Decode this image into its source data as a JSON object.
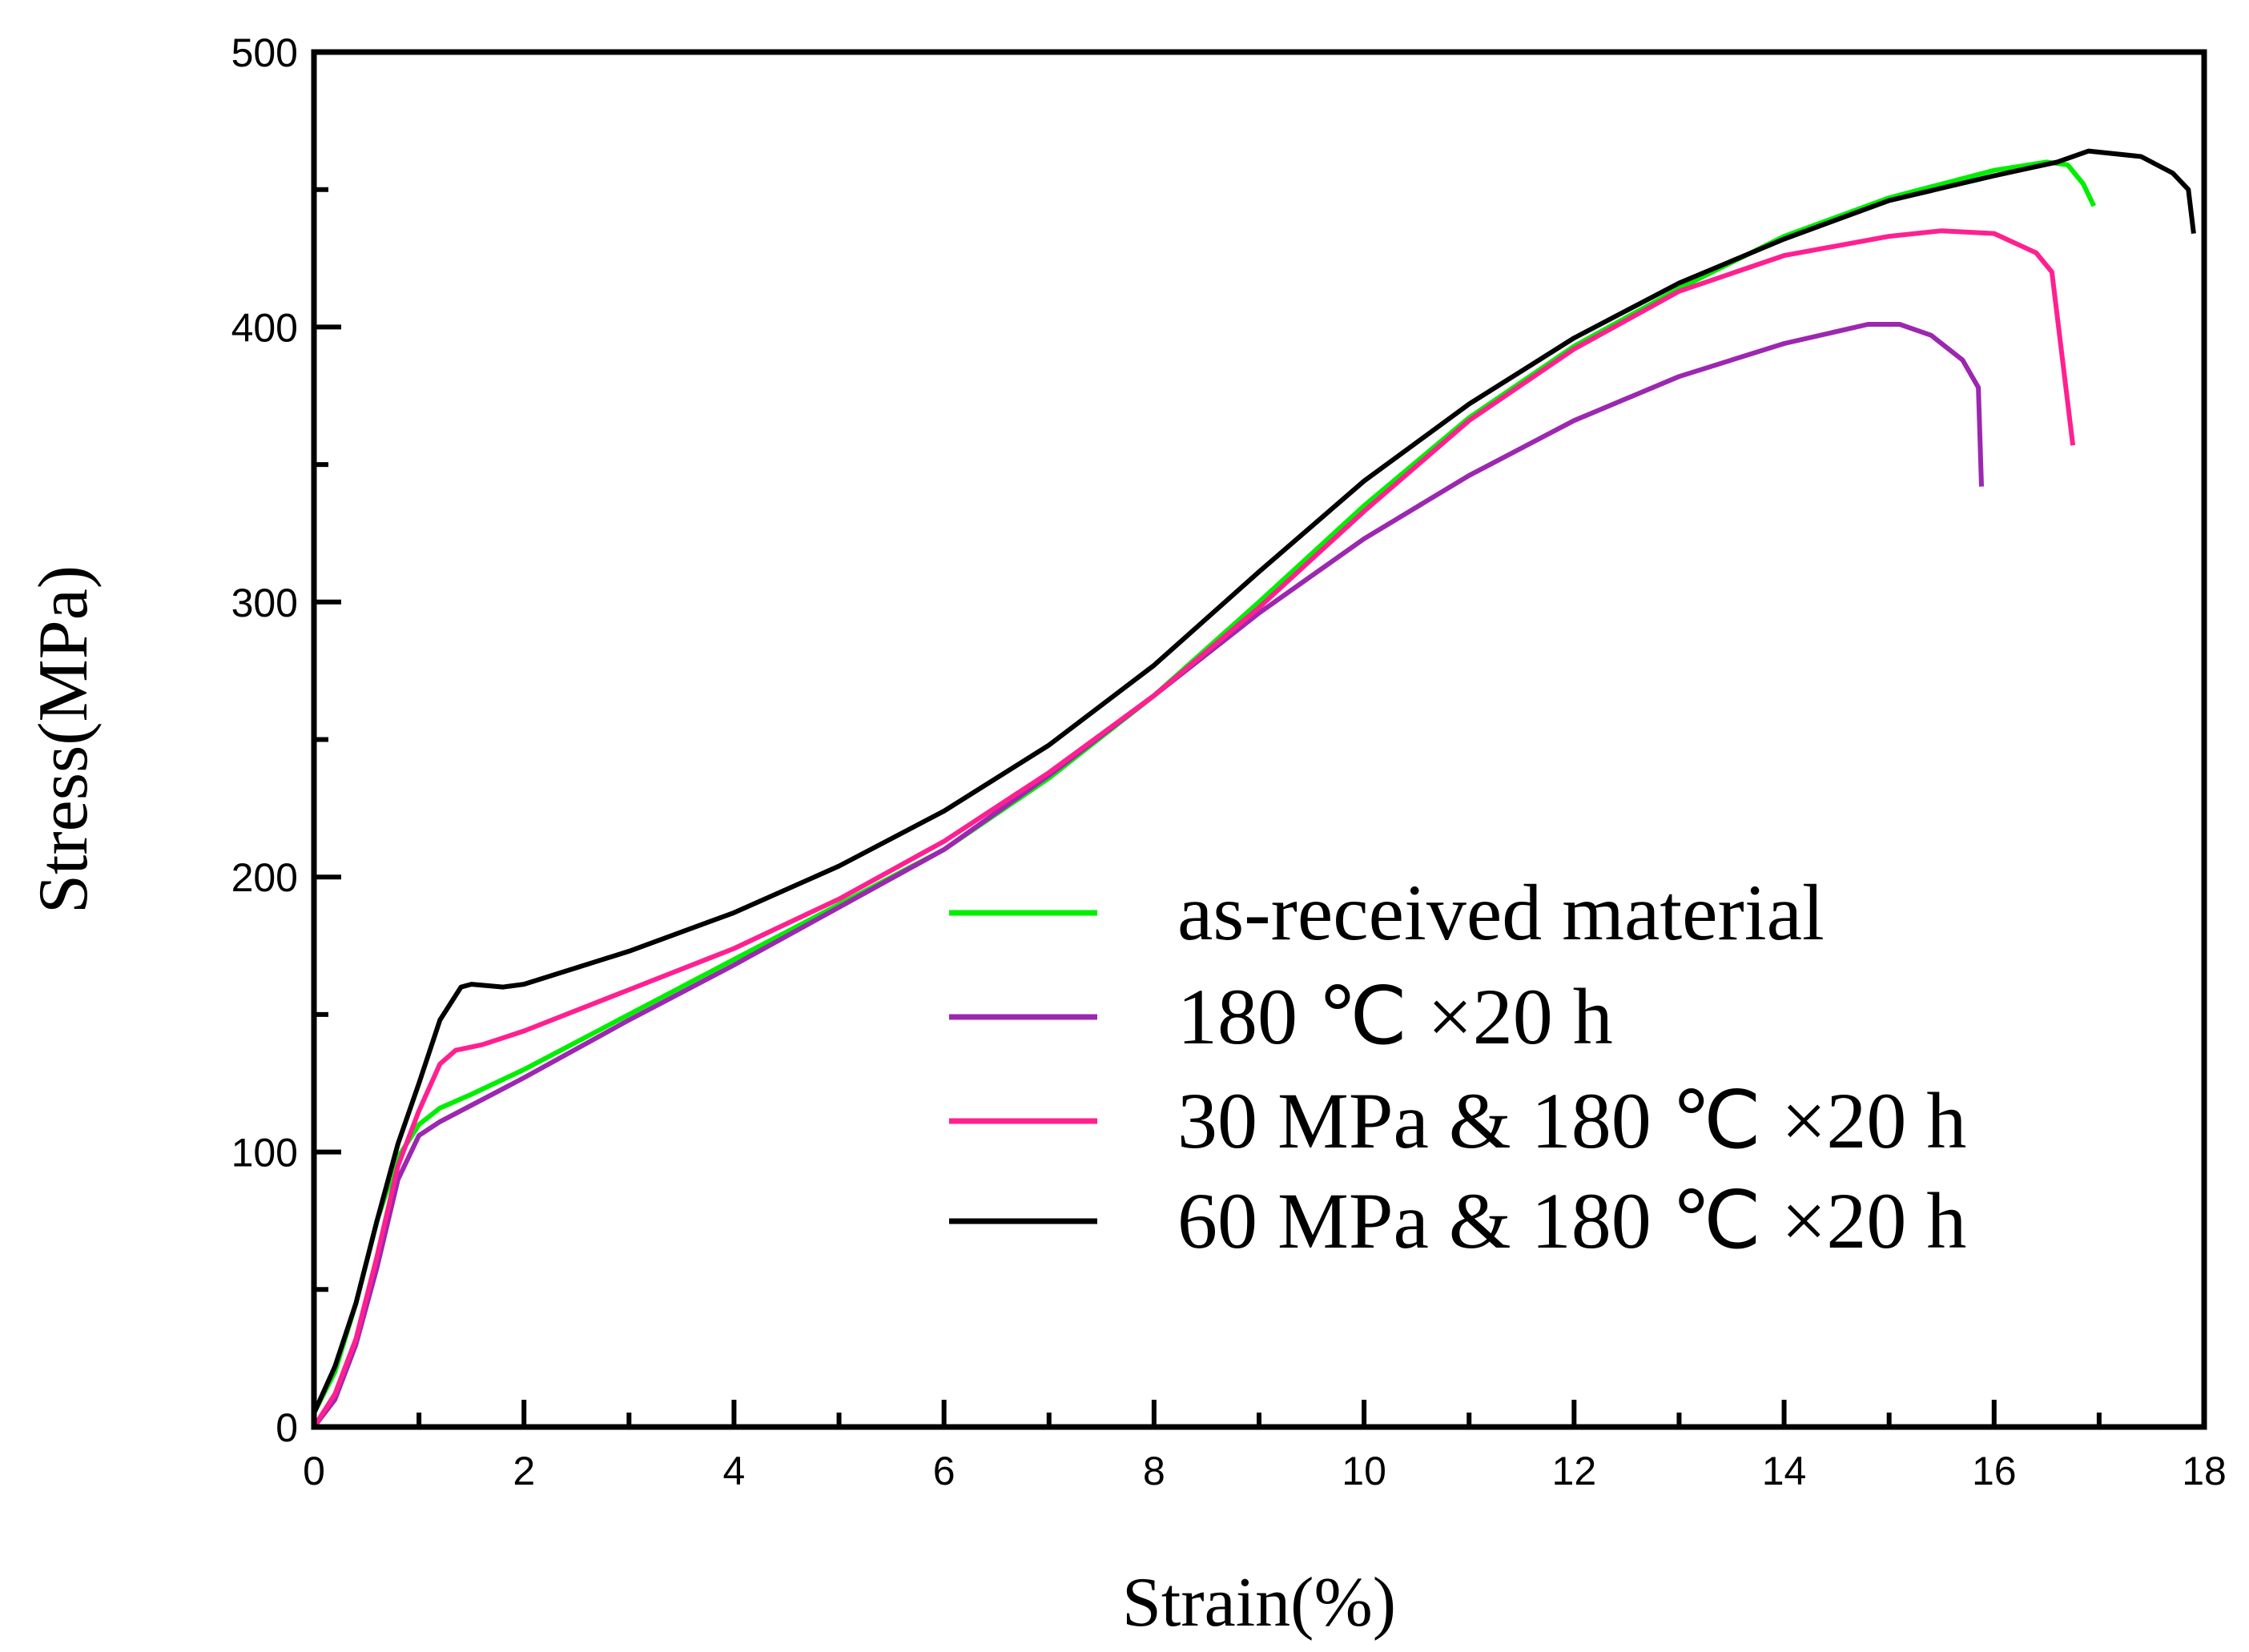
{
  "chart_data": {
    "type": "line",
    "title": "",
    "xlabel": "Strain(%)",
    "ylabel": "Stress(MPa)",
    "xlim": [
      0,
      18
    ],
    "ylim": [
      0,
      500
    ],
    "xticks": [
      0,
      2,
      4,
      6,
      8,
      10,
      12,
      14,
      16,
      18
    ],
    "yticks": [
      0,
      100,
      200,
      300,
      400,
      500
    ],
    "grid": false,
    "legend_position": "bottom-right",
    "series": [
      {
        "name": "as-received material",
        "color": "#00ee00",
        "points": [
          [
            0,
            5
          ],
          [
            0.2,
            20
          ],
          [
            0.4,
            45
          ],
          [
            0.6,
            75
          ],
          [
            0.8,
            98
          ],
          [
            1.0,
            110
          ],
          [
            1.2,
            116
          ],
          [
            1.5,
            121
          ],
          [
            2,
            130
          ],
          [
            3,
            150
          ],
          [
            4,
            170
          ],
          [
            5,
            190
          ],
          [
            6,
            210
          ],
          [
            7,
            236
          ],
          [
            8,
            266
          ],
          [
            9,
            300
          ],
          [
            10,
            335
          ],
          [
            11,
            367
          ],
          [
            12,
            393
          ],
          [
            13,
            414
          ],
          [
            14,
            433
          ],
          [
            15,
            447
          ],
          [
            16,
            457
          ],
          [
            16.5,
            460
          ],
          [
            16.7,
            459
          ],
          [
            16.85,
            452
          ],
          [
            16.95,
            444
          ]
        ]
      },
      {
        "name": "180 ℃ ×20 h",
        "color": "#9c27b0",
        "points": [
          [
            0,
            0
          ],
          [
            0.2,
            10
          ],
          [
            0.4,
            30
          ],
          [
            0.6,
            58
          ],
          [
            0.8,
            90
          ],
          [
            1.0,
            106
          ],
          [
            1.2,
            111
          ],
          [
            1.5,
            117
          ],
          [
            2,
            127
          ],
          [
            3,
            148
          ],
          [
            4,
            168
          ],
          [
            5,
            189
          ],
          [
            6,
            210
          ],
          [
            7,
            237
          ],
          [
            8,
            266
          ],
          [
            9,
            296
          ],
          [
            10,
            323
          ],
          [
            11,
            346
          ],
          [
            12,
            366
          ],
          [
            13,
            382
          ],
          [
            14,
            394
          ],
          [
            14.8,
            401
          ],
          [
            15.1,
            401
          ],
          [
            15.4,
            397
          ],
          [
            15.7,
            388
          ],
          [
            15.85,
            378
          ],
          [
            15.88,
            342
          ]
        ]
      },
      {
        "name": "30 MPa & 180 ℃ ×20 h",
        "color": "#ff2090",
        "points": [
          [
            0,
            0
          ],
          [
            0.2,
            12
          ],
          [
            0.4,
            32
          ],
          [
            0.6,
            62
          ],
          [
            0.8,
            95
          ],
          [
            1.0,
            115
          ],
          [
            1.2,
            132
          ],
          [
            1.35,
            137
          ],
          [
            1.6,
            139
          ],
          [
            2,
            144
          ],
          [
            3,
            159
          ],
          [
            4,
            174
          ],
          [
            5,
            192
          ],
          [
            6,
            213
          ],
          [
            7,
            238
          ],
          [
            8,
            266
          ],
          [
            9,
            298
          ],
          [
            10,
            333
          ],
          [
            11,
            366
          ],
          [
            12,
            392
          ],
          [
            13,
            413
          ],
          [
            14,
            426
          ],
          [
            15,
            433
          ],
          [
            15.5,
            435
          ],
          [
            16,
            434
          ],
          [
            16.4,
            427
          ],
          [
            16.55,
            420
          ],
          [
            16.75,
            357
          ]
        ]
      },
      {
        "name": "60 MPa & 180 ℃ ×20 h",
        "color": "#000000",
        "points": [
          [
            0,
            5
          ],
          [
            0.2,
            22
          ],
          [
            0.4,
            45
          ],
          [
            0.6,
            75
          ],
          [
            0.8,
            103
          ],
          [
            1.0,
            125
          ],
          [
            1.2,
            148
          ],
          [
            1.4,
            160
          ],
          [
            1.5,
            161
          ],
          [
            1.8,
            160
          ],
          [
            2,
            161
          ],
          [
            3,
            173
          ],
          [
            4,
            187
          ],
          [
            5,
            204
          ],
          [
            6,
            224
          ],
          [
            7,
            248
          ],
          [
            8,
            277
          ],
          [
            9,
            311
          ],
          [
            10,
            344
          ],
          [
            11,
            372
          ],
          [
            12,
            396
          ],
          [
            13,
            416
          ],
          [
            14,
            432
          ],
          [
            15,
            446
          ],
          [
            16,
            455
          ],
          [
            16.6,
            460
          ],
          [
            16.9,
            464
          ],
          [
            17.4,
            462
          ],
          [
            17.7,
            456
          ],
          [
            17.85,
            450
          ],
          [
            17.9,
            434
          ]
        ]
      }
    ]
  }
}
